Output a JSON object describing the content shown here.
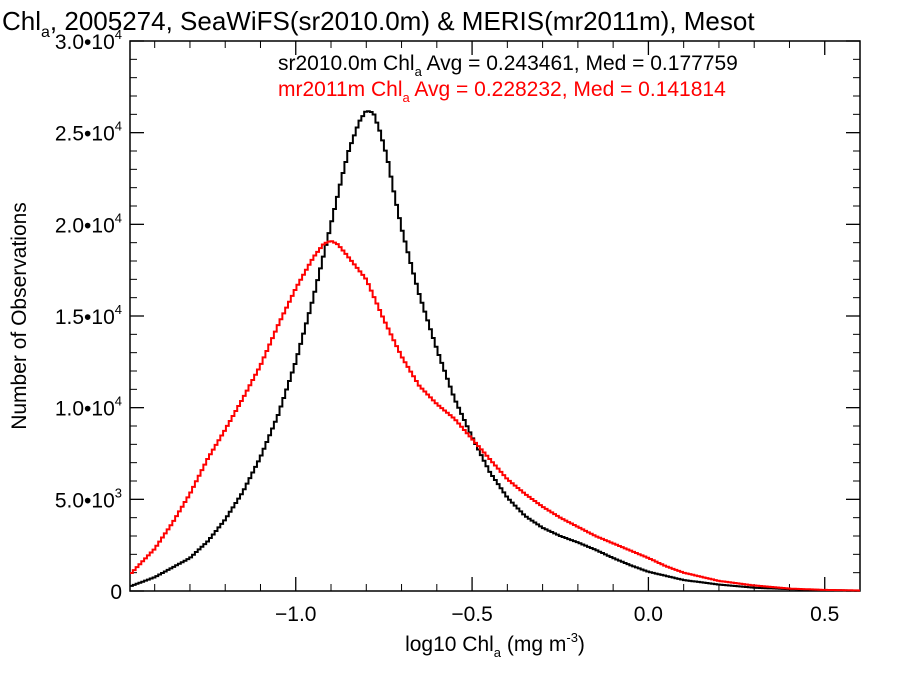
{
  "chart_data": {
    "type": "line",
    "title": {
      "main": "Chl",
      "sub": "a",
      "rest": ", 2005274, SeaWiFS(sr2010.0m) & MERIS(mr2011m), Mesot"
    },
    "xlabel": {
      "pre": "log10 Chl",
      "sub": "a",
      "mid": " (mg m",
      "sup": "-3",
      "post": ")"
    },
    "ylabel": "Number of Observations",
    "xlim": [
      -1.47,
      0.6
    ],
    "ylim": [
      0,
      30000
    ],
    "x_ticks": [
      {
        "value": -1.0,
        "label": "−1.0"
      },
      {
        "value": -0.5,
        "label": "−0.5"
      },
      {
        "value": 0.0,
        "label": "0.0"
      },
      {
        "value": 0.5,
        "label": "0.5"
      }
    ],
    "y_ticks": [
      {
        "value": 0,
        "label": "0",
        "exp": ""
      },
      {
        "value": 5000,
        "label": "5.0•10",
        "exp": "3"
      },
      {
        "value": 10000,
        "label": "1.0•10",
        "exp": "4"
      },
      {
        "value": 15000,
        "label": "1.5•10",
        "exp": "4"
      },
      {
        "value": 20000,
        "label": "2.0•10",
        "exp": "4"
      },
      {
        "value": 25000,
        "label": "2.5•10",
        "exp": "4"
      },
      {
        "value": 30000,
        "label": "3.0•10",
        "exp": "4"
      }
    ],
    "legend": [
      {
        "pre": "sr2010.0m Chl",
        "sub": "a",
        "post": " Avg = 0.243461, Med = 0.177759",
        "color": "#000000"
      },
      {
        "pre": "mr2011m Chl",
        "sub": "a",
        "post": " Avg = 0.228232, Med = 0.141814",
        "color": "#ff0000"
      }
    ],
    "series": [
      {
        "color": "#000000",
        "x": [
          -1.47,
          -1.4,
          -1.3,
          -1.25,
          -1.2,
          -1.15,
          -1.1,
          -1.05,
          -1.0,
          -0.95,
          -0.9,
          -0.87,
          -0.85,
          -0.82,
          -0.8,
          -0.78,
          -0.76,
          -0.74,
          -0.72,
          -0.7,
          -0.67,
          -0.65,
          -0.6,
          -0.55,
          -0.5,
          -0.45,
          -0.4,
          -0.35,
          -0.3,
          -0.25,
          -0.2,
          -0.15,
          -0.1,
          -0.05,
          0.0,
          0.1,
          0.2,
          0.3,
          0.4,
          0.5,
          0.6
        ],
        "y": [
          250,
          750,
          1800,
          2700,
          3900,
          5400,
          7300,
          9600,
          12500,
          16000,
          20000,
          22500,
          24000,
          25600,
          26200,
          26100,
          25000,
          23600,
          21600,
          19800,
          17600,
          16200,
          13200,
          10500,
          8400,
          6500,
          5100,
          4100,
          3450,
          3000,
          2650,
          2250,
          1800,
          1400,
          1050,
          600,
          350,
          180,
          100,
          50,
          20
        ]
      },
      {
        "color": "#ff0000",
        "x": [
          -1.47,
          -1.4,
          -1.35,
          -1.3,
          -1.25,
          -1.2,
          -1.15,
          -1.1,
          -1.05,
          -1.0,
          -0.95,
          -0.92,
          -0.9,
          -0.88,
          -0.85,
          -0.8,
          -0.75,
          -0.7,
          -0.65,
          -0.6,
          -0.55,
          -0.5,
          -0.45,
          -0.4,
          -0.35,
          -0.3,
          -0.25,
          -0.2,
          -0.15,
          -0.1,
          -0.05,
          0.0,
          0.05,
          0.1,
          0.2,
          0.3,
          0.4,
          0.5,
          0.6
        ],
        "y": [
          900,
          2300,
          3700,
          5300,
          7200,
          8800,
          10500,
          12300,
          14500,
          16500,
          18200,
          18950,
          19100,
          18900,
          18200,
          17000,
          14800,
          12800,
          11200,
          10200,
          9400,
          8300,
          7200,
          6100,
          5300,
          4600,
          4000,
          3500,
          3000,
          2600,
          2200,
          1800,
          1350,
          1000,
          550,
          300,
          130,
          60,
          30
        ]
      }
    ]
  }
}
